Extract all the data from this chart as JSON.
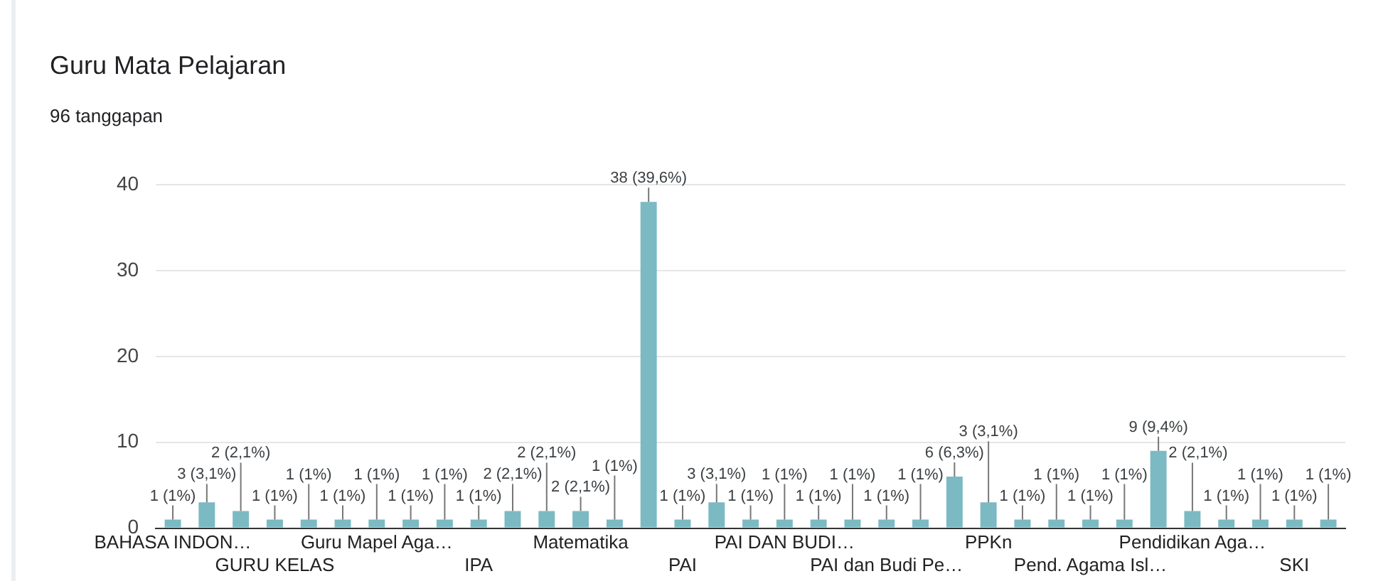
{
  "chart_data": {
    "type": "bar",
    "title": "Guru Mata Pelajaran",
    "subtitle": "96 tanggapan",
    "categories": [
      "BAHASA INDON…",
      null,
      null,
      "GURU KELAS",
      null,
      null,
      "Guru Mapel Aga…",
      null,
      null,
      "IPA",
      null,
      null,
      "Matematika",
      null,
      null,
      "PAI",
      null,
      null,
      "PAI DAN BUDI…",
      null,
      null,
      "PAI dan Budi Pe…",
      null,
      null,
      "PPKn",
      null,
      null,
      "Pend. Agama Isl…",
      null,
      null,
      "Pendidikan Aga…",
      null,
      null,
      "SKI",
      null
    ],
    "values": [
      1,
      3,
      2,
      1,
      1,
      1,
      1,
      1,
      1,
      1,
      2,
      2,
      2,
      1,
      38,
      1,
      3,
      1,
      1,
      1,
      1,
      1,
      1,
      6,
      3,
      1,
      1,
      1,
      1,
      9,
      2,
      1,
      1,
      1,
      1
    ],
    "value_labels": [
      "1 (1%)",
      "3 (3,1%)",
      "2 (2,1%)",
      "1 (1%)",
      "1 (1%)",
      "1 (1%)",
      "1 (1%)",
      "1 (1%)",
      "1 (1%)",
      "1 (1%)",
      "2 (2,1%)",
      "2 (2,1%)",
      "2 (2,1%)",
      "1 (1%)",
      "38 (39,6%)",
      "1 (1%)",
      "3 (3,1%)",
      "1 (1%)",
      "1 (1%)",
      "1 (1%)",
      "1 (1%)",
      "1 (1%)",
      "1 (1%)",
      "6 (6,3%)",
      "3 (3,1%)",
      "1 (1%)",
      "1 (1%)",
      "1 (1%)",
      "1 (1%)",
      "9 (9,4%)",
      "2 (2,1%)",
      "1 (1%)",
      "1 (1%)",
      "1 (1%)",
      "1 (1%)"
    ],
    "color": "#7bbac2",
    "ylim": [
      0,
      40
    ],
    "yticks": [
      0,
      10,
      20,
      30,
      40
    ],
    "grid": "y",
    "legend": false
  }
}
